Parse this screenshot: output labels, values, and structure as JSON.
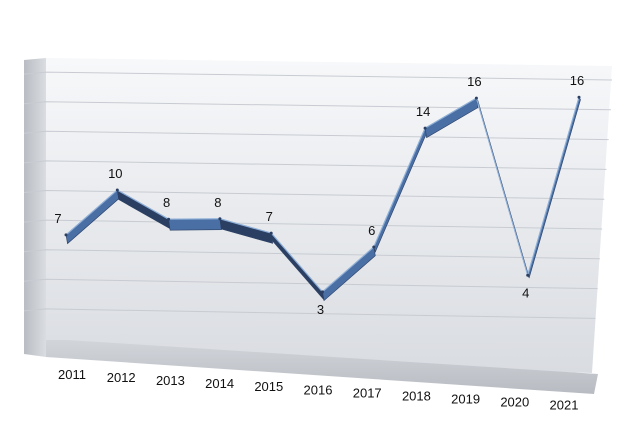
{
  "chart_data": {
    "type": "line",
    "title": "",
    "xlabel": "",
    "ylabel": "",
    "categories": [
      "2011",
      "2012",
      "2013",
      "2014",
      "2015",
      "2016",
      "2017",
      "2018",
      "2019",
      "2020",
      "2021"
    ],
    "series": [
      {
        "values": [
          7,
          10,
          8,
          8,
          7,
          3,
          6,
          14,
          16,
          4,
          16
        ]
      }
    ],
    "ylim": [
      0,
      18
    ],
    "grid": true,
    "legend": "none",
    "data_labels": true,
    "style": "3d-ribbon",
    "colors": {
      "line": "#4a6fa5",
      "line_dark": "#2b3f63",
      "wall_top": "#f6f7f9",
      "wall_bottom": "#d8dbe0",
      "gridline": "#c8ccd2",
      "side_wall": "#c9ccd1",
      "floor": "#c4c7cc"
    }
  }
}
